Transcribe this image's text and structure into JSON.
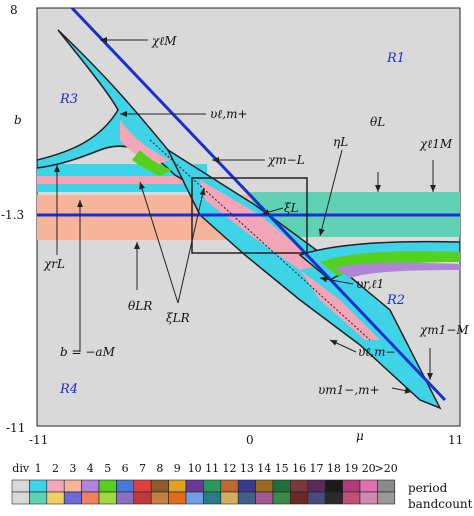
{
  "axes": {
    "y_top": "8",
    "y_mid": "-1.3",
    "y_bottom": "-11",
    "y_name": "b",
    "x_left": "-11",
    "x_zero": "0",
    "x_mu": "μ",
    "x_right": "11"
  },
  "regions": {
    "r1": "R1",
    "r2": "R2",
    "r3": "R3",
    "r4": "R4"
  },
  "labels": {
    "chi_m_l": "χℓM",
    "upsilon_l_mplus": "υℓ,m+",
    "chi_l_mminus": "χm−L",
    "theta_l": "θL",
    "eta_l": "ηL",
    "chi_m_l1": "χℓ1M",
    "xi_l": "ξL",
    "chi_l_r": "χrL",
    "theta_lr": "θLR",
    "b_eq": "b = −aM",
    "xi_lr": "ξLR",
    "upsilon_r_l1": "υr,ℓ1",
    "upsilon_l_mminus": "υℓ,m−",
    "chi_m_m1": "χm1−M",
    "upsilon_m1_mplus": "υm1−,m+"
  },
  "legend": {
    "columns": [
      "div",
      "1",
      "2",
      "3",
      "4",
      "5",
      "6",
      "7",
      "8",
      "9",
      "10",
      "11",
      "12",
      "13",
      "14",
      "15",
      "16",
      "17",
      "18",
      "19",
      "20",
      ">20"
    ],
    "period_label": "period",
    "bandcount_label": "bandcount"
  },
  "colors": {
    "background": "#d9d9d9",
    "blue_line": "#1a2fd0",
    "cyan": "#3fd3e8",
    "pink": "#f4a6b8",
    "salmon": "#f6b49a",
    "teal": "#5fd1b4",
    "green": "#54d11e",
    "purple": "#b084d6"
  }
}
